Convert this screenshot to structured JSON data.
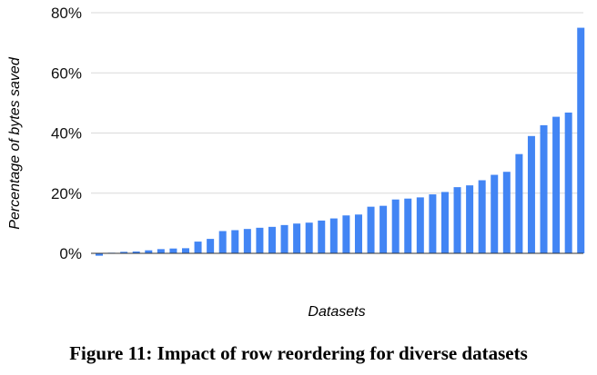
{
  "chart_data": {
    "type": "bar",
    "xlabel": "Datasets",
    "ylabel": "Percentage of bytes saved",
    "ylim": [
      0,
      80
    ],
    "yticks": [
      0,
      20,
      40,
      60,
      80
    ],
    "ytick_format": "%",
    "grid": true,
    "legend": "none",
    "values": [
      -0.8,
      0.2,
      0.5,
      0.6,
      1.0,
      1.4,
      1.6,
      1.7,
      3.9,
      4.8,
      7.4,
      7.7,
      8.1,
      8.5,
      8.8,
      9.4,
      9.9,
      10.2,
      10.9,
      11.6,
      12.6,
      12.9,
      15.5,
      15.8,
      17.9,
      18.2,
      18.6,
      19.6,
      20.4,
      22.0,
      22.6,
      24.3,
      26.1,
      27.1,
      33.0,
      39.0,
      42.6,
      45.4,
      46.8,
      75.0
    ],
    "bar_color": "#4285f4"
  },
  "caption": "Figure 11: Impact of row reordering for diverse datasets"
}
